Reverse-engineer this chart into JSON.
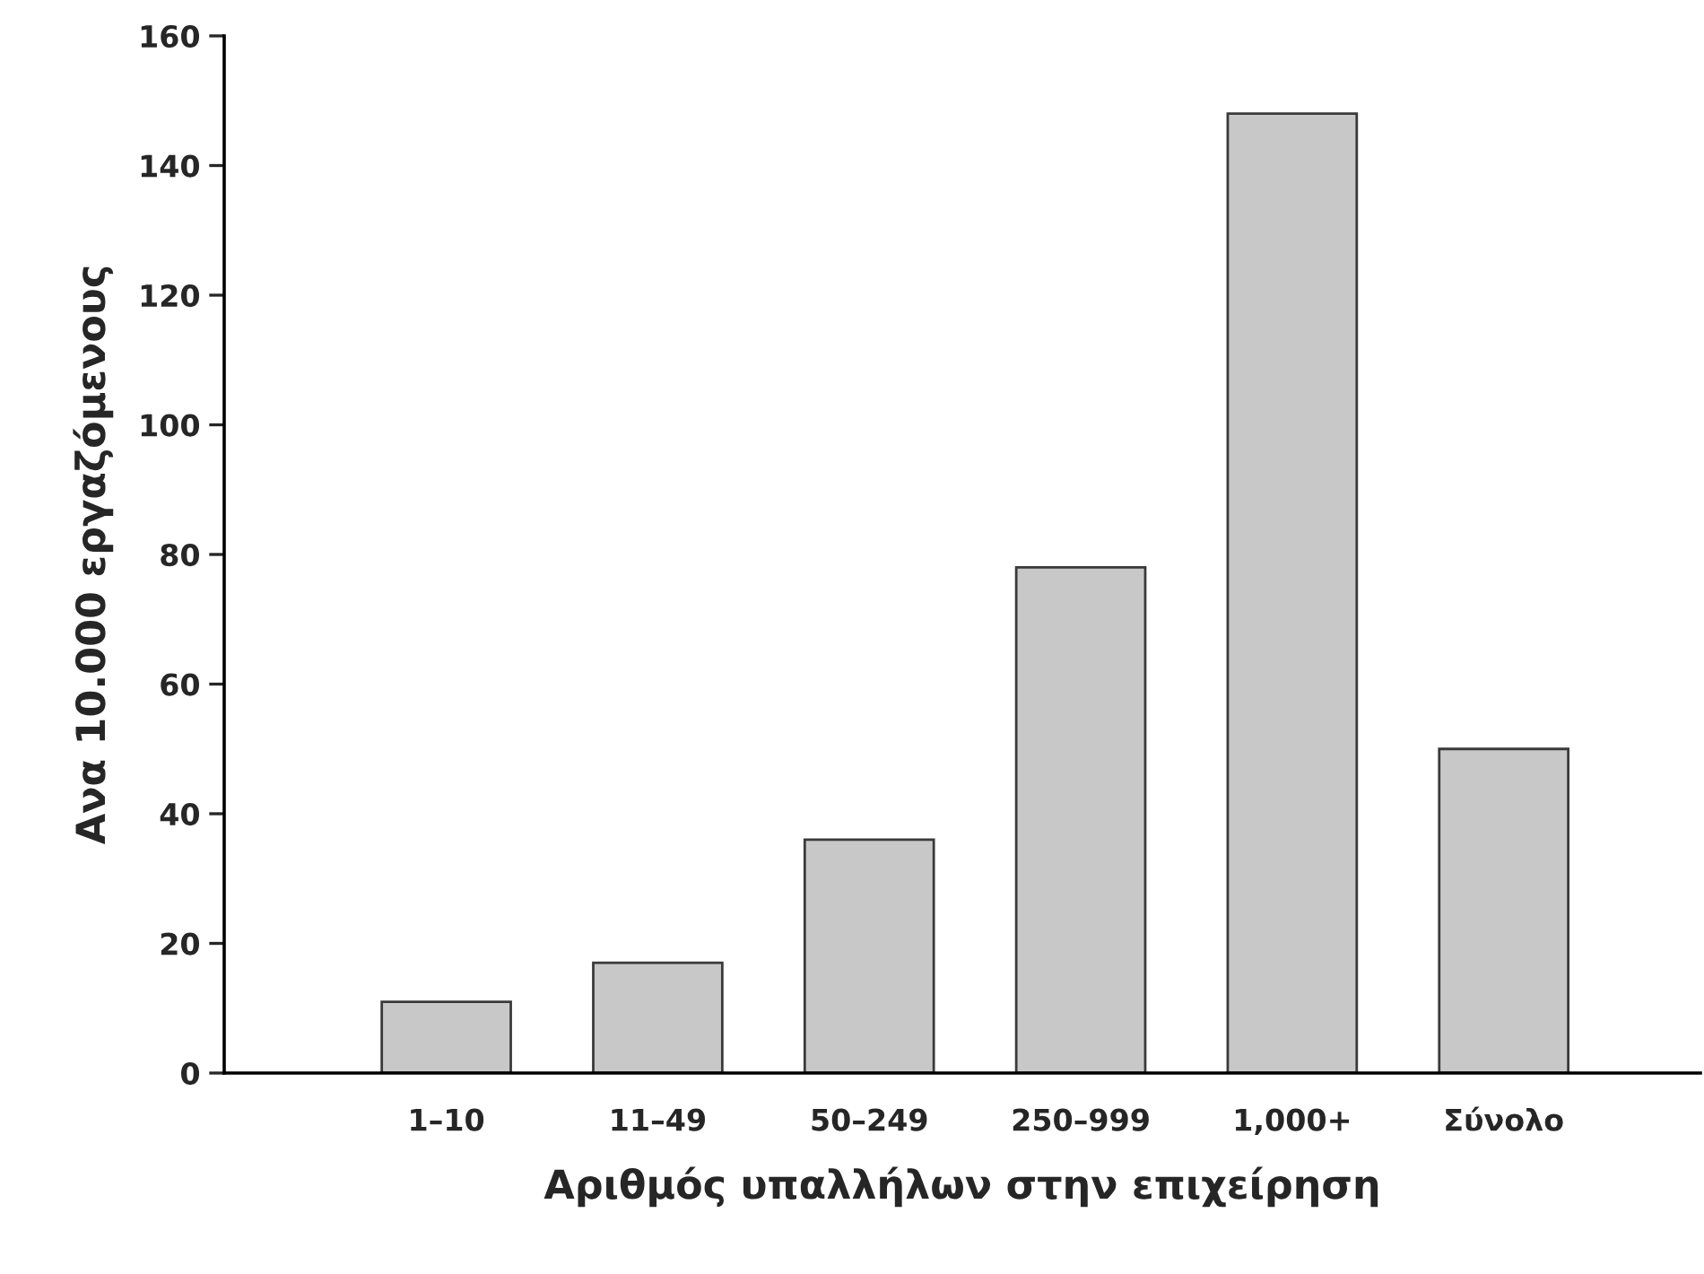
{
  "chart_data": {
    "type": "bar",
    "xlabel": "Αριθμός υπαλλήλων στην επιχείρηση",
    "ylabel": "Ανα 10.000 εργαζόμενους",
    "categories": [
      "1–10",
      "11–49",
      "50–249",
      "250–999",
      "1,000+",
      "Σύνολο"
    ],
    "values": [
      11,
      17,
      36,
      78,
      148,
      50
    ],
    "color": "#c8c8c8",
    "ylim": [
      0,
      160
    ],
    "yticks": [
      0,
      20,
      40,
      60,
      80,
      100,
      120,
      140,
      160
    ],
    "grid": false
  }
}
